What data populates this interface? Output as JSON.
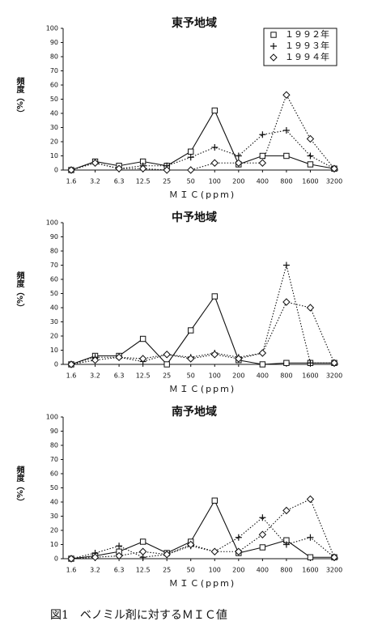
{
  "chart_data": [
    {
      "type": "line",
      "title": "東予地域",
      "x_label": "ＭＩＣ(ppm)",
      "y_label": "頻度（%）",
      "categories": [
        "1.6",
        "3.2",
        "6.3",
        "12.5",
        "25",
        "50",
        "100",
        "200",
        "400",
        "800",
        "1600",
        "3200"
      ],
      "ylim": [
        0,
        100
      ],
      "yticks": [
        0,
        10,
        20,
        30,
        40,
        50,
        60,
        70,
        80,
        90,
        100
      ],
      "legend": "top-right",
      "series": [
        {
          "name": "１９９２年",
          "color": "#111",
          "marker": "square",
          "linestyle": "solid",
          "values": [
            0,
            6,
            3,
            6,
            3,
            13,
            42,
            4,
            10,
            10,
            4,
            1
          ]
        },
        {
          "name": "１９９３年",
          "color": "#111",
          "marker": "plus",
          "linestyle": "dotted",
          "values": [
            0,
            5,
            1,
            3,
            3,
            9,
            16,
            10,
            25,
            28,
            10,
            1
          ]
        },
        {
          "name": "１９９４年",
          "color": "#111",
          "marker": "diamond",
          "linestyle": "dotted",
          "values": [
            0,
            5,
            1,
            1,
            0,
            0,
            5,
            5,
            5,
            53,
            22,
            1
          ]
        }
      ]
    },
    {
      "type": "line",
      "title": "中予地域",
      "x_label": "ＭＩＣ(ppm)",
      "y_label": "頻度（%）",
      "categories": [
        "1.6",
        "3.2",
        "6.3",
        "12.5",
        "25",
        "50",
        "100",
        "200",
        "400",
        "800",
        "1600",
        "3200"
      ],
      "ylim": [
        0,
        100
      ],
      "yticks": [
        0,
        10,
        20,
        30,
        40,
        50,
        60,
        70,
        80,
        90,
        100
      ],
      "series": [
        {
          "color": "#111",
          "marker": "square",
          "linestyle": "solid",
          "values": [
            0,
            6,
            6,
            18,
            0,
            24,
            48,
            3,
            0,
            1,
            1,
            1
          ]
        },
        {
          "color": "#111",
          "marker": "plus",
          "linestyle": "dotted",
          "values": [
            0,
            5,
            5,
            2,
            7,
            5,
            8,
            5,
            8,
            70,
            1,
            1
          ]
        },
        {
          "color": "#111",
          "marker": "diamond",
          "linestyle": "dotted",
          "values": [
            0,
            3,
            5,
            4,
            7,
            4,
            7,
            4,
            8,
            44,
            40,
            1
          ]
        }
      ]
    },
    {
      "type": "line",
      "title": "南予地域",
      "x_label": "ＭＩＣ(ppm)",
      "y_label": "頻度（%）",
      "categories": [
        "1.6",
        "3.2",
        "6.3",
        "12.5",
        "25",
        "50",
        "100",
        "200",
        "400",
        "800",
        "1600",
        "3200"
      ],
      "ylim": [
        0,
        100
      ],
      "yticks": [
        0,
        10,
        20,
        30,
        40,
        50,
        60,
        70,
        80,
        90,
        100
      ],
      "series": [
        {
          "color": "#111",
          "marker": "square",
          "linestyle": "solid",
          "values": [
            0,
            2,
            5,
            12,
            4,
            12,
            41,
            4,
            8,
            13,
            1,
            1
          ]
        },
        {
          "color": "#111",
          "marker": "plus",
          "linestyle": "dotted",
          "values": [
            0,
            4,
            9,
            1,
            3,
            9,
            5,
            15,
            29,
            10,
            15,
            1
          ]
        },
        {
          "color": "#111",
          "marker": "diamond",
          "linestyle": "dotted",
          "values": [
            0,
            1,
            2,
            5,
            3,
            10,
            5,
            5,
            17,
            34,
            42,
            1
          ]
        }
      ]
    }
  ],
  "figure_caption": "図1　ベノミル剤に対するＭＩＣ値"
}
